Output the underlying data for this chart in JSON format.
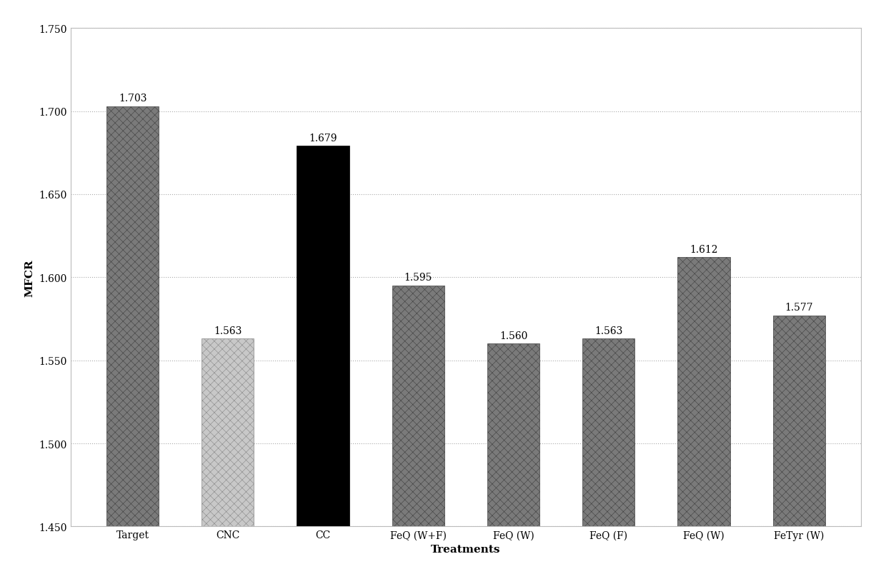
{
  "categories": [
    "Target",
    "CNC",
    "CC",
    "FeQ (W+F)",
    "FeQ (W)",
    "FeQ (F)",
    "FeQ (W)",
    "FeTyr (W)"
  ],
  "values": [
    1.703,
    1.563,
    1.679,
    1.595,
    1.56,
    1.563,
    1.612,
    1.577
  ],
  "ylabel": "MFCR",
  "xlabel": "Treatments",
  "ylim": [
    1.45,
    1.75
  ],
  "yticks": [
    1.45,
    1.5,
    1.55,
    1.6,
    1.65,
    1.7,
    1.75
  ],
  "bar_labels": [
    "1.703",
    "1.563",
    "1.679",
    "1.595",
    "1.560",
    "1.563",
    "1.612",
    "1.577"
  ],
  "background_color": "#ffffff",
  "plot_bg_color": "#ffffff",
  "label_fontsize": 11,
  "tick_fontsize": 10,
  "annotation_fontsize": 10
}
